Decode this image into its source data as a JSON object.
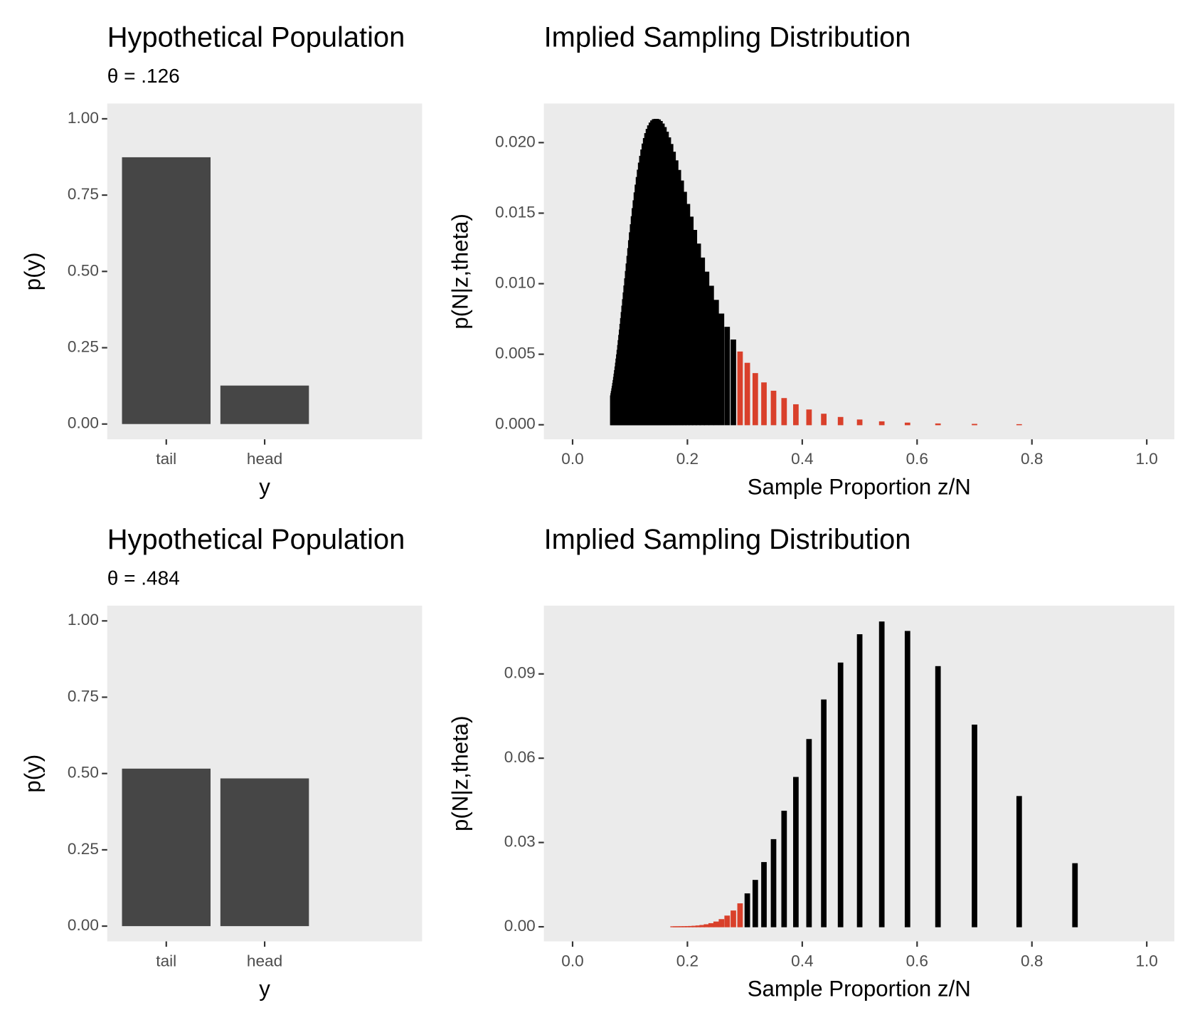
{
  "chart_data": [
    {
      "type": "bar",
      "title": "Hypothetical Population",
      "subtitle": "θ = .126",
      "categories": [
        "tail",
        "head"
      ],
      "values": [
        0.874,
        0.126
      ],
      "color": "#464646",
      "x_label": "y",
      "y_label": "p(y)",
      "ylim": [
        -0.05,
        1.05
      ],
      "yticks": [
        {
          "value": 0,
          "label": "0.00"
        },
        {
          "value": 0.25,
          "label": "0.25"
        },
        {
          "value": 0.5,
          "label": "0.50"
        },
        {
          "value": 0.75,
          "label": "0.75"
        },
        {
          "value": 1,
          "label": "1.00"
        }
      ],
      "grid": false
    },
    {
      "type": "bar",
      "title": "Implied Sampling Distribution",
      "x_label": "Sample Proportion z/N",
      "y_label": "p(N|z,theta)",
      "xlim": [
        -0.05,
        1.048
      ],
      "ylim": [
        -0.00103,
        0.02277
      ],
      "xticks": [
        {
          "value": 0,
          "label": "0.0"
        },
        0.2,
        0.4,
        0.6,
        0.8,
        {
          "value": 1,
          "label": "1.0"
        }
      ],
      "yticks": [
        {
          "value": 0,
          "label": "0.000"
        },
        {
          "value": 0.005,
          "label": "0.005"
        },
        {
          "value": 0.01,
          "label": "0.010"
        },
        {
          "value": 0.015,
          "label": "0.015"
        },
        {
          "value": 0.02,
          "label": "0.020"
        }
      ],
      "grid": false,
      "series": [
        {
          "color": "#000000",
          "x": [
            0.28,
            0.2692,
            0.2593,
            0.25,
            0.2414,
            0.2333,
            0.2258,
            0.2188,
            0.2121,
            0.2059,
            0.2,
            0.1944,
            0.1892,
            0.1842,
            0.1795,
            0.175,
            0.1707,
            0.1667,
            0.1628,
            0.1591,
            0.1556,
            0.1522,
            0.1489,
            0.1458,
            0.1429,
            0.14,
            0.1373,
            0.1346,
            0.1321,
            0.1296,
            0.1273,
            0.125,
            0.1228,
            0.1207,
            0.1186,
            0.1167,
            0.1148,
            0.1129,
            0.1111,
            0.1094,
            0.1077,
            0.1061,
            0.1045,
            0.1029,
            0.1014,
            0.1,
            0.0986,
            0.0972,
            0.0959,
            0.0946,
            0.0933,
            0.0921,
            0.0909,
            0.0897,
            0.0886,
            0.0875,
            0.0864,
            0.0854,
            0.0843,
            0.0833,
            0.0824,
            0.0814,
            0.0805,
            0.0795,
            0.0787,
            0.0778,
            0.0769,
            0.0761,
            0.0753,
            0.0745,
            0.0737,
            0.0729,
            0.0722,
            0.0714,
            0.0707,
            0.07
          ],
          "values": [
            0.00601,
            0.00691,
            0.00785,
            0.00882,
            0.00982,
            0.01082,
            0.01182,
            0.01281,
            0.01378,
            0.01472,
            0.01562,
            0.01648,
            0.01728,
            0.01803,
            0.01871,
            0.01932,
            0.01987,
            0.02034,
            0.02074,
            0.02107,
            0.02132,
            0.0215,
            0.02161,
            0.02165,
            0.02163,
            0.02154,
            0.02139,
            0.02119,
            0.02094,
            0.02064,
            0.02029,
            0.0199,
            0.01948,
            0.01903,
            0.01855,
            0.01805,
            0.01753,
            0.01699,
            0.01644,
            0.01588,
            0.01532,
            0.01475,
            0.01418,
            0.01361,
            0.01305,
            0.01249,
            0.01194,
            0.0114,
            0.01087,
            0.01035,
            0.00984,
            0.00935,
            0.00887,
            0.00841,
            0.00796,
            0.00753,
            0.00712,
            0.00672,
            0.00634,
            0.00597,
            0.00562,
            0.00528,
            0.00496,
            0.00466,
            0.00437,
            0.0041,
            0.00384,
            0.00359,
            0.00336,
            0.00314,
            0.00293,
            0.00273,
            0.00255,
            0.00237,
            0.00221,
            0.00205
          ]
        },
        {
          "color": "#d9402b",
          "x": [
            0.875,
            0.7778,
            0.7,
            0.6364,
            0.5833,
            0.5385,
            0.5,
            0.4667,
            0.4375,
            0.4118,
            0.3889,
            0.3684,
            0.35,
            0.3333,
            0.3182,
            0.3043,
            0.2917
          ],
          "values": [
            0,
            1e-05,
            3e-05,
            6e-05,
            0.00012,
            0.00021,
            0.00034,
            0.00052,
            0.00075,
            0.00105,
            0.00142,
            0.00186,
            0.00238,
            0.00297,
            0.00363,
            0.00436,
            0.00516
          ]
        }
      ]
    },
    {
      "type": "bar",
      "title": "Hypothetical Population",
      "subtitle": "θ = .484",
      "categories": [
        "tail",
        "head"
      ],
      "values": [
        0.516,
        0.484
      ],
      "color": "#464646",
      "x_label": "y",
      "y_label": "p(y)",
      "ylim": [
        -0.05,
        1.05
      ],
      "yticks": [
        {
          "value": 0,
          "label": "0.00"
        },
        {
          "value": 0.25,
          "label": "0.25"
        },
        {
          "value": 0.5,
          "label": "0.50"
        },
        {
          "value": 0.75,
          "label": "0.75"
        },
        {
          "value": 1,
          "label": "1.00"
        }
      ],
      "grid": false
    },
    {
      "type": "bar",
      "title": "Implied Sampling Distribution",
      "x_label": "Sample Proportion z/N",
      "y_label": "p(N|z,theta)",
      "xlim": [
        -0.05,
        1.048
      ],
      "ylim": [
        -0.0052,
        0.1143
      ],
      "xticks": [
        {
          "value": 0,
          "label": "0.0"
        },
        0.2,
        0.4,
        0.6,
        0.8,
        {
          "value": 1,
          "label": "1.0"
        }
      ],
      "yticks": [
        {
          "value": 0,
          "label": "0.00"
        },
        0.03,
        0.06,
        0.09
      ],
      "grid": false,
      "series": [
        {
          "color": "#000000",
          "x": [
            0.875,
            0.7778,
            0.7,
            0.6364,
            0.5833,
            0.5385,
            0.5,
            0.4667,
            0.4375,
            0.4118,
            0.3889,
            0.3684,
            0.35,
            0.3333,
            0.3182,
            0.3043
          ],
          "values": [
            0.02247,
            0.04637,
            0.07179,
            0.09261,
            0.10513,
            0.10849,
            0.10396,
            0.09388,
            0.08074,
            0.06666,
            0.05316,
            0.04114,
            0.03103,
            0.02287,
            0.01652,
            0.01172
          ]
        },
        {
          "color": "#d9402b",
          "x": [
            0.2917,
            0.28,
            0.2692,
            0.2593,
            0.25,
            0.2414,
            0.2333,
            0.2258,
            0.2188,
            0.2121,
            0.2059,
            0.2,
            0.1944,
            0.1892,
            0.1842,
            0.1795,
            0.175,
            0.1707,
            0.1667,
            0.1628,
            0.1591,
            0.1556,
            0.1522,
            0.1489,
            0.1458,
            0.1429,
            0.14,
            0.1373,
            0.1346,
            0.1321,
            0.1296,
            0.1273,
            0.125,
            0.1228,
            0.1207,
            0.1186,
            0.1167,
            0.1148,
            0.1129,
            0.1111,
            0.1094,
            0.1077,
            0.1061,
            0.1045,
            0.1029,
            0.1014,
            0.1,
            0.0986,
            0.0972,
            0.0959,
            0.0946,
            0.0933,
            0.0921,
            0.0909,
            0.0897,
            0.0886,
            0.0875,
            0.0864,
            0.0854,
            0.0843,
            0.0833,
            0.0824,
            0.0814,
            0.0805,
            0.0795,
            0.0787,
            0.0778,
            0.0769,
            0.0761,
            0.0753,
            0.0745,
            0.0737,
            0.0729,
            0.0722,
            0.0714,
            0.0707,
            0.07
          ],
          "values": [
            0.00818,
            0.00563,
            0.00382,
            0.00256,
            0.0017,
            0.00112,
            0.00073,
            0.00047,
            0.0003,
            0.00019,
            0.00012,
            8e-05,
            5e-05,
            3e-05,
            2e-05,
            1e-05,
            1e-05,
            0,
            0,
            0,
            0,
            0,
            0,
            0,
            0,
            0,
            0,
            0,
            0,
            0,
            0,
            0,
            0,
            0,
            0,
            0,
            0,
            0,
            0,
            0,
            0,
            0,
            0,
            0,
            0,
            0,
            0,
            0,
            0,
            0,
            0,
            0,
            0,
            0,
            0,
            0,
            0,
            0,
            0,
            0,
            0,
            0,
            0,
            0,
            0,
            0,
            0,
            0,
            0,
            0,
            0,
            0,
            0,
            0,
            0,
            0,
            0
          ]
        }
      ]
    }
  ]
}
